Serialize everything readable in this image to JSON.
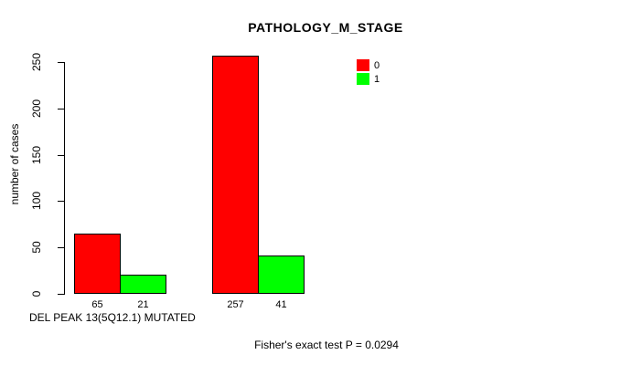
{
  "chart_data": {
    "type": "bar",
    "title": "PATHOLOGY_M_STAGE",
    "ylabel": "number of cases",
    "xlabel": "DEL PEAK 13(5Q12.1) MUTATED",
    "ylim": [
      0,
      250
    ],
    "yticks": [
      0,
      50,
      100,
      150,
      200,
      250
    ],
    "grid": false,
    "series": [
      {
        "name": "0",
        "color": "#ff0000",
        "values": [
          65,
          257
        ]
      },
      {
        "name": "1",
        "color": "#00ff00",
        "values": [
          21,
          41
        ]
      }
    ],
    "bar_count_labels": [
      [
        "65",
        "21"
      ],
      [
        "257",
        "41"
      ]
    ],
    "legend": {
      "position": "top-right",
      "entries": [
        {
          "label": "0",
          "color": "#ff0000"
        },
        {
          "label": "1",
          "color": "#00ff00"
        }
      ]
    },
    "annotation": "Fisher's exact test P = 0.0294",
    "axis_color": "#000000",
    "bar_border_color": "#000000"
  }
}
